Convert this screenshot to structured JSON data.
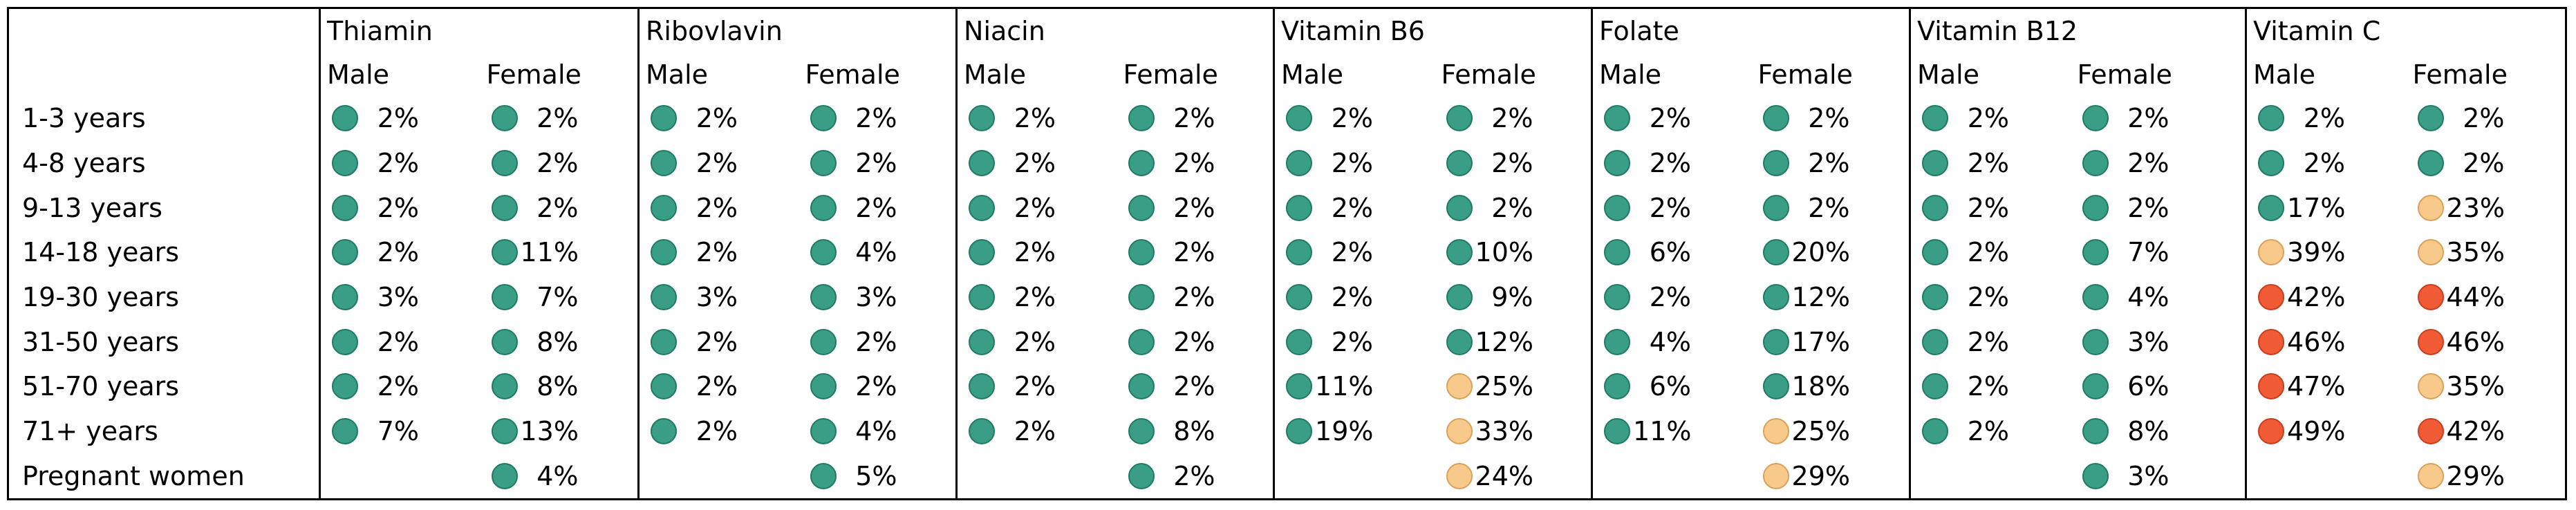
{
  "colors": {
    "green": "#3a9e86",
    "green_border": "#1f7a64",
    "orange": "#f7c98a",
    "orange_border": "#d9a15b",
    "red": "#f05a35",
    "red_border": "#c73d1d"
  },
  "column_sub_labels": {
    "male": "Male",
    "female": "Female"
  },
  "vitamins": [
    {
      "name": "Thiamin",
      "rows": [
        {
          "male": {
            "value": "2%",
            "level": "green"
          },
          "female": {
            "value": "2%",
            "level": "green"
          }
        },
        {
          "male": {
            "value": "2%",
            "level": "green"
          },
          "female": {
            "value": "2%",
            "level": "green"
          }
        },
        {
          "male": {
            "value": "2%",
            "level": "green"
          },
          "female": {
            "value": "2%",
            "level": "green"
          }
        },
        {
          "male": {
            "value": "2%",
            "level": "green"
          },
          "female": {
            "value": "11%",
            "level": "green"
          }
        },
        {
          "male": {
            "value": "3%",
            "level": "green"
          },
          "female": {
            "value": "7%",
            "level": "green"
          }
        },
        {
          "male": {
            "value": "2%",
            "level": "green"
          },
          "female": {
            "value": "8%",
            "level": "green"
          }
        },
        {
          "male": {
            "value": "2%",
            "level": "green"
          },
          "female": {
            "value": "8%",
            "level": "green"
          }
        },
        {
          "male": {
            "value": "7%",
            "level": "green"
          },
          "female": {
            "value": "13%",
            "level": "green"
          }
        },
        {
          "male": null,
          "female": {
            "value": "4%",
            "level": "green"
          }
        }
      ]
    },
    {
      "name": "Ribovlavin",
      "rows": [
        {
          "male": {
            "value": "2%",
            "level": "green"
          },
          "female": {
            "value": "2%",
            "level": "green"
          }
        },
        {
          "male": {
            "value": "2%",
            "level": "green"
          },
          "female": {
            "value": "2%",
            "level": "green"
          }
        },
        {
          "male": {
            "value": "2%",
            "level": "green"
          },
          "female": {
            "value": "2%",
            "level": "green"
          }
        },
        {
          "male": {
            "value": "2%",
            "level": "green"
          },
          "female": {
            "value": "4%",
            "level": "green"
          }
        },
        {
          "male": {
            "value": "3%",
            "level": "green"
          },
          "female": {
            "value": "3%",
            "level": "green"
          }
        },
        {
          "male": {
            "value": "2%",
            "level": "green"
          },
          "female": {
            "value": "2%",
            "level": "green"
          }
        },
        {
          "male": {
            "value": "2%",
            "level": "green"
          },
          "female": {
            "value": "2%",
            "level": "green"
          }
        },
        {
          "male": {
            "value": "2%",
            "level": "green"
          },
          "female": {
            "value": "4%",
            "level": "green"
          }
        },
        {
          "male": null,
          "female": {
            "value": "5%",
            "level": "green"
          }
        }
      ]
    },
    {
      "name": "Niacin",
      "rows": [
        {
          "male": {
            "value": "2%",
            "level": "green"
          },
          "female": {
            "value": "2%",
            "level": "green"
          }
        },
        {
          "male": {
            "value": "2%",
            "level": "green"
          },
          "female": {
            "value": "2%",
            "level": "green"
          }
        },
        {
          "male": {
            "value": "2%",
            "level": "green"
          },
          "female": {
            "value": "2%",
            "level": "green"
          }
        },
        {
          "male": {
            "value": "2%",
            "level": "green"
          },
          "female": {
            "value": "2%",
            "level": "green"
          }
        },
        {
          "male": {
            "value": "2%",
            "level": "green"
          },
          "female": {
            "value": "2%",
            "level": "green"
          }
        },
        {
          "male": {
            "value": "2%",
            "level": "green"
          },
          "female": {
            "value": "2%",
            "level": "green"
          }
        },
        {
          "male": {
            "value": "2%",
            "level": "green"
          },
          "female": {
            "value": "2%",
            "level": "green"
          }
        },
        {
          "male": {
            "value": "2%",
            "level": "green"
          },
          "female": {
            "value": "8%",
            "level": "green"
          }
        },
        {
          "male": null,
          "female": {
            "value": "2%",
            "level": "green"
          }
        }
      ]
    },
    {
      "name": "Vitamin B6",
      "rows": [
        {
          "male": {
            "value": "2%",
            "level": "green"
          },
          "female": {
            "value": "2%",
            "level": "green"
          }
        },
        {
          "male": {
            "value": "2%",
            "level": "green"
          },
          "female": {
            "value": "2%",
            "level": "green"
          }
        },
        {
          "male": {
            "value": "2%",
            "level": "green"
          },
          "female": {
            "value": "2%",
            "level": "green"
          }
        },
        {
          "male": {
            "value": "2%",
            "level": "green"
          },
          "female": {
            "value": "10%",
            "level": "green"
          }
        },
        {
          "male": {
            "value": "2%",
            "level": "green"
          },
          "female": {
            "value": "9%",
            "level": "green"
          }
        },
        {
          "male": {
            "value": "2%",
            "level": "green"
          },
          "female": {
            "value": "12%",
            "level": "green"
          }
        },
        {
          "male": {
            "value": "11%",
            "level": "green"
          },
          "female": {
            "value": "25%",
            "level": "orange"
          }
        },
        {
          "male": {
            "value": "19%",
            "level": "green"
          },
          "female": {
            "value": "33%",
            "level": "orange"
          }
        },
        {
          "male": null,
          "female": {
            "value": "24%",
            "level": "orange"
          }
        }
      ]
    },
    {
      "name": "Folate",
      "rows": [
        {
          "male": {
            "value": "2%",
            "level": "green"
          },
          "female": {
            "value": "2%",
            "level": "green"
          }
        },
        {
          "male": {
            "value": "2%",
            "level": "green"
          },
          "female": {
            "value": "2%",
            "level": "green"
          }
        },
        {
          "male": {
            "value": "2%",
            "level": "green"
          },
          "female": {
            "value": "2%",
            "level": "green"
          }
        },
        {
          "male": {
            "value": "6%",
            "level": "green"
          },
          "female": {
            "value": "20%",
            "level": "green"
          }
        },
        {
          "male": {
            "value": "2%",
            "level": "green"
          },
          "female": {
            "value": "12%",
            "level": "green"
          }
        },
        {
          "male": {
            "value": "4%",
            "level": "green"
          },
          "female": {
            "value": "17%",
            "level": "green"
          }
        },
        {
          "male": {
            "value": "6%",
            "level": "green"
          },
          "female": {
            "value": "18%",
            "level": "green"
          }
        },
        {
          "male": {
            "value": "11%",
            "level": "green"
          },
          "female": {
            "value": "25%",
            "level": "orange"
          }
        },
        {
          "male": null,
          "female": {
            "value": "29%",
            "level": "orange"
          }
        }
      ]
    },
    {
      "name": "Vitamin B12",
      "rows": [
        {
          "male": {
            "value": "2%",
            "level": "green"
          },
          "female": {
            "value": "2%",
            "level": "green"
          }
        },
        {
          "male": {
            "value": "2%",
            "level": "green"
          },
          "female": {
            "value": "2%",
            "level": "green"
          }
        },
        {
          "male": {
            "value": "2%",
            "level": "green"
          },
          "female": {
            "value": "2%",
            "level": "green"
          }
        },
        {
          "male": {
            "value": "2%",
            "level": "green"
          },
          "female": {
            "value": "7%",
            "level": "green"
          }
        },
        {
          "male": {
            "value": "2%",
            "level": "green"
          },
          "female": {
            "value": "4%",
            "level": "green"
          }
        },
        {
          "male": {
            "value": "2%",
            "level": "green"
          },
          "female": {
            "value": "3%",
            "level": "green"
          }
        },
        {
          "male": {
            "value": "2%",
            "level": "green"
          },
          "female": {
            "value": "6%",
            "level": "green"
          }
        },
        {
          "male": {
            "value": "2%",
            "level": "green"
          },
          "female": {
            "value": "8%",
            "level": "green"
          }
        },
        {
          "male": null,
          "female": {
            "value": "3%",
            "level": "green"
          }
        }
      ]
    },
    {
      "name": "Vitamin C",
      "rows": [
        {
          "male": {
            "value": "2%",
            "level": "green"
          },
          "female": {
            "value": "2%",
            "level": "green"
          }
        },
        {
          "male": {
            "value": "2%",
            "level": "green"
          },
          "female": {
            "value": "2%",
            "level": "green"
          }
        },
        {
          "male": {
            "value": "17%",
            "level": "green"
          },
          "female": {
            "value": "23%",
            "level": "orange"
          }
        },
        {
          "male": {
            "value": "39%",
            "level": "orange"
          },
          "female": {
            "value": "35%",
            "level": "orange"
          }
        },
        {
          "male": {
            "value": "42%",
            "level": "red"
          },
          "female": {
            "value": "44%",
            "level": "red"
          }
        },
        {
          "male": {
            "value": "46%",
            "level": "red"
          },
          "female": {
            "value": "46%",
            "level": "red"
          }
        },
        {
          "male": {
            "value": "47%",
            "level": "red"
          },
          "female": {
            "value": "35%",
            "level": "orange"
          }
        },
        {
          "male": {
            "value": "49%",
            "level": "red"
          },
          "female": {
            "value": "42%",
            "level": "red"
          }
        },
        {
          "male": null,
          "female": {
            "value": "29%",
            "level": "orange"
          }
        }
      ]
    }
  ],
  "age_groups": [
    "1-3 years",
    "4-8 years",
    "9-13 years",
    "14-18 years",
    "19-30 years",
    "31-50 years",
    "51-70 years",
    "71+ years",
    "Pregnant women"
  ]
}
